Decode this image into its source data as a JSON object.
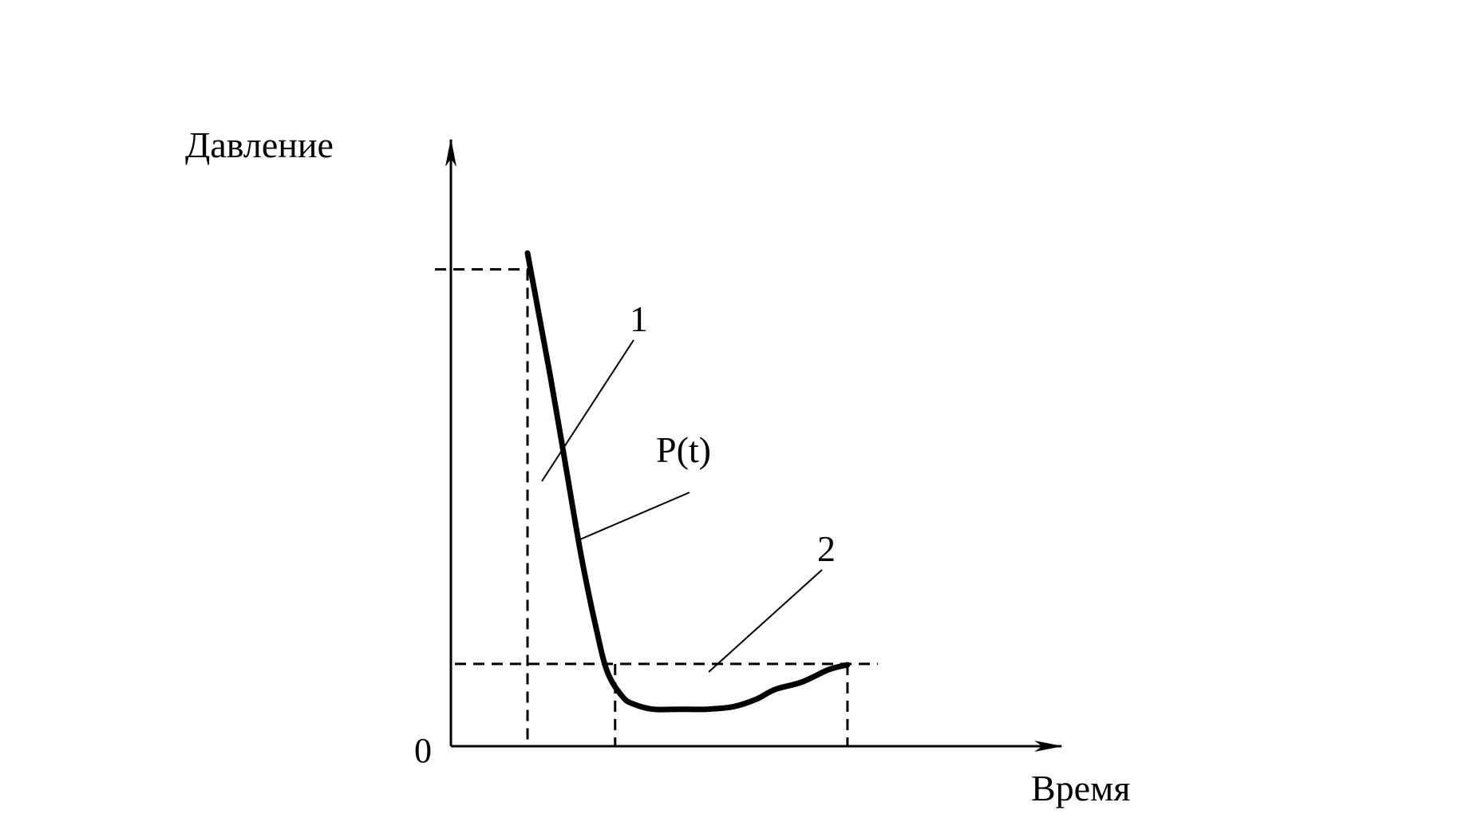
{
  "chart_data": {
    "type": "line",
    "ylabel": "Давление",
    "xlabel": "Время",
    "origin_label": "0",
    "series": [
      {
        "name": "P(t)",
        "points": [
          [
            0.0,
            10.0
          ],
          [
            0.012,
            9.0
          ],
          [
            0.03,
            7.5
          ],
          [
            0.05,
            5.7
          ],
          [
            0.07,
            3.9
          ],
          [
            0.09,
            2.4
          ],
          [
            0.105,
            1.5
          ],
          [
            0.125,
            1.0
          ],
          [
            0.14,
            0.85
          ],
          [
            0.165,
            0.75
          ],
          [
            0.2,
            0.75
          ],
          [
            0.235,
            0.75
          ],
          [
            0.27,
            0.8
          ],
          [
            0.3,
            0.95
          ],
          [
            0.325,
            1.15
          ],
          [
            0.36,
            1.3
          ],
          [
            0.395,
            1.55
          ],
          [
            0.42,
            1.65
          ]
        ]
      }
    ],
    "reference_lines": {
      "upper_level_y": 9.67,
      "lower_level_y": 1.67,
      "t_start_x": 0.0,
      "t_cross_x": 0.115,
      "t_end_x": 0.42
    },
    "callouts": [
      {
        "text": "1",
        "at": [
          0.043,
          6.3
        ]
      },
      {
        "text": "P(t)",
        "at": [
          0.071,
          4.5
        ]
      },
      {
        "text": "2",
        "at": [
          0.26,
          1.25
        ]
      }
    ],
    "xlim": [
      -0.11,
      0.77
    ],
    "ylim": [
      0,
      12.3
    ],
    "grid": false,
    "legend": "none"
  }
}
